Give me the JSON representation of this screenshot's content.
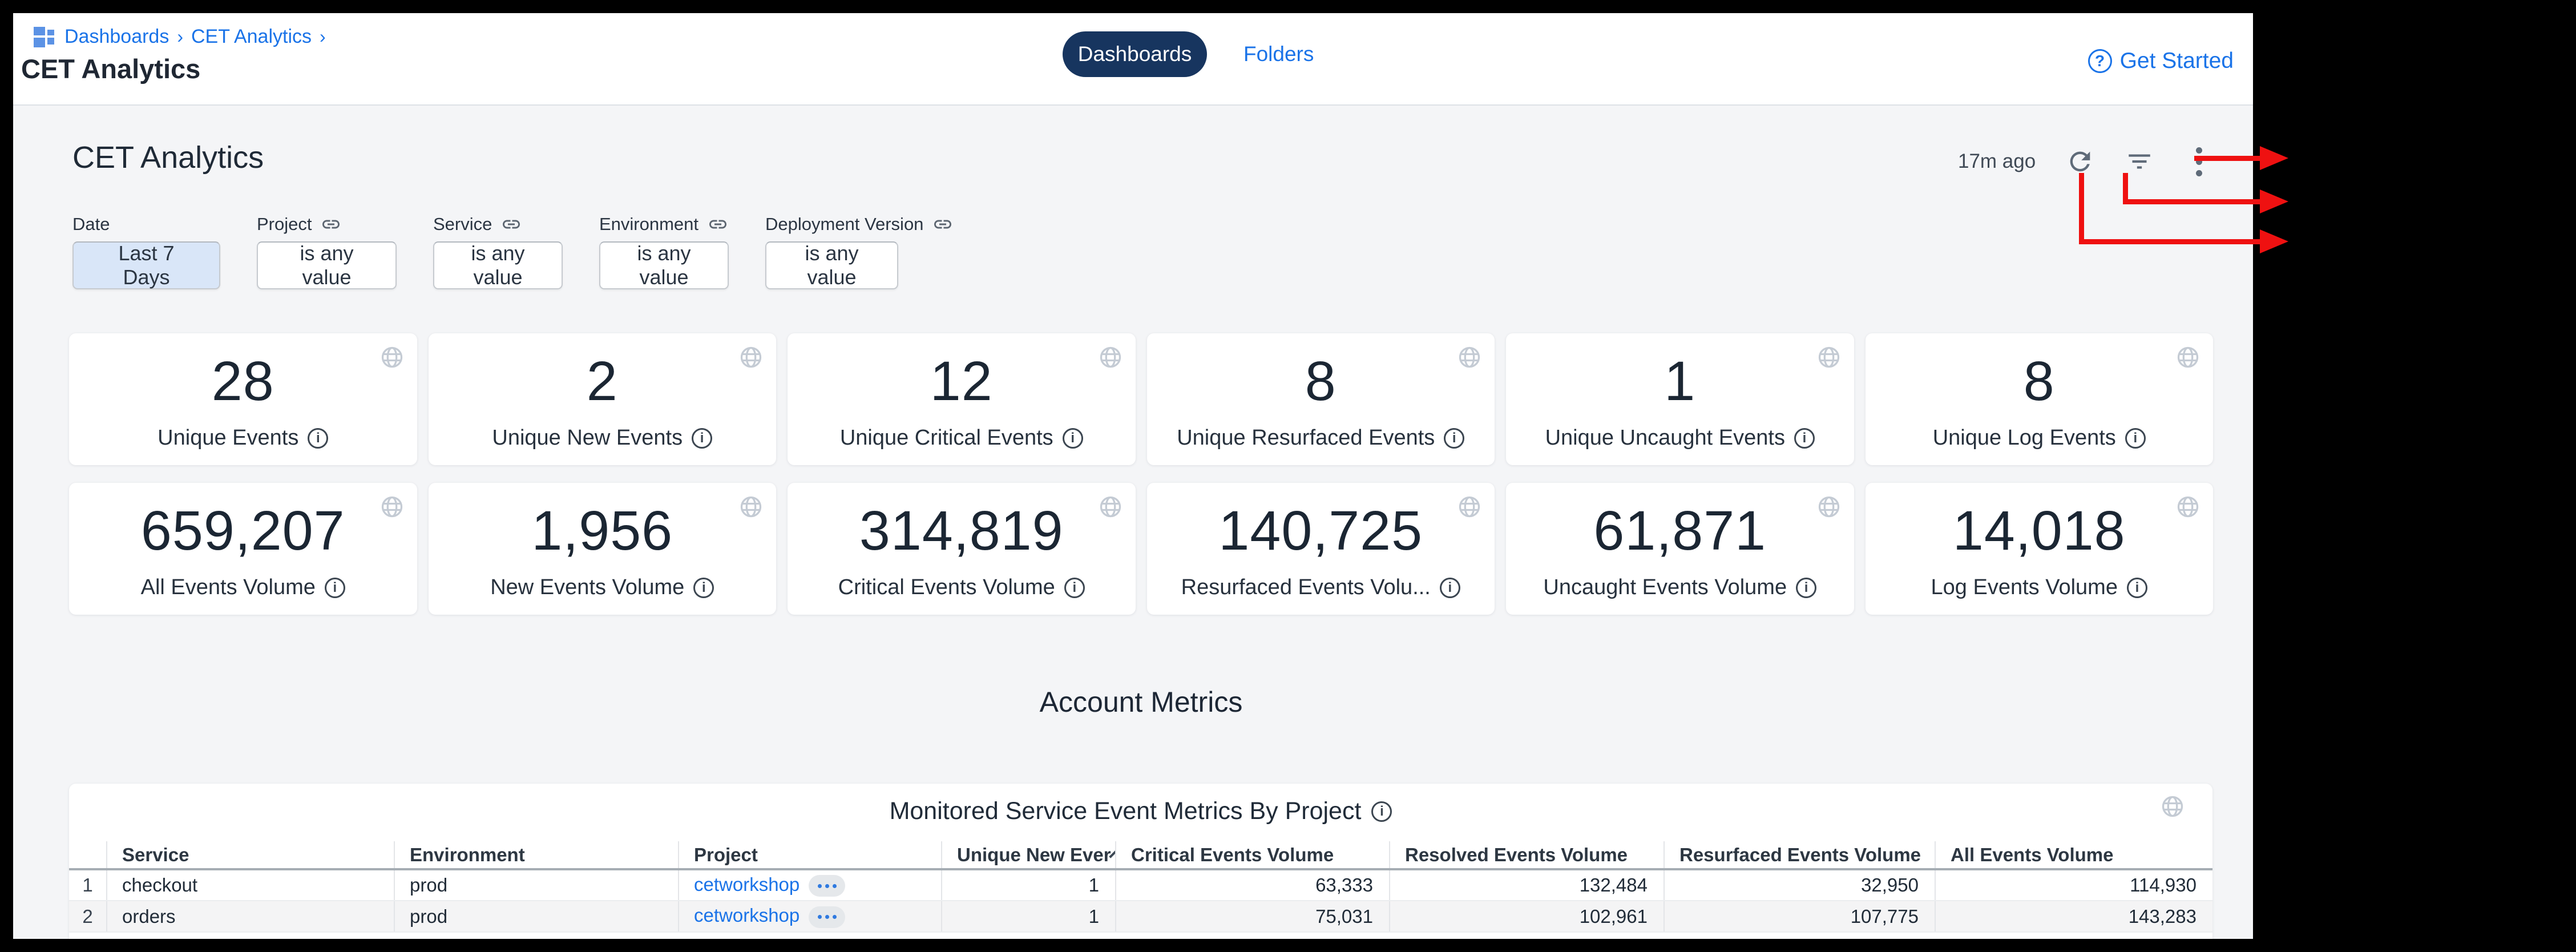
{
  "header": {
    "breadcrumb": {
      "root": "Dashboards",
      "current": "CET Analytics",
      "sep": "›"
    },
    "page_title": "CET Analytics",
    "tabs": {
      "dashboards": "Dashboards",
      "folders": "Folders"
    },
    "get_started": "Get Started"
  },
  "dashboard": {
    "title": "CET Analytics",
    "last_refreshed": "17m ago",
    "filters": [
      {
        "label": "Date",
        "value": "Last 7 Days",
        "linked": false,
        "active": true
      },
      {
        "label": "Project",
        "value": "is any value",
        "linked": true,
        "active": false
      },
      {
        "label": "Service",
        "value": "is any value",
        "linked": true,
        "active": false
      },
      {
        "label": "Environment",
        "value": "is any value",
        "linked": true,
        "active": false
      },
      {
        "label": "Deployment Version",
        "value": "is any value",
        "linked": true,
        "active": false
      }
    ],
    "tiles": [
      {
        "value": "28",
        "label": "Unique Events"
      },
      {
        "value": "2",
        "label": "Unique New Events"
      },
      {
        "value": "12",
        "label": "Unique Critical Events"
      },
      {
        "value": "8",
        "label": "Unique Resurfaced Events"
      },
      {
        "value": "1",
        "label": "Unique Uncaught Events"
      },
      {
        "value": "8",
        "label": "Unique Log Events"
      },
      {
        "value": "659,207",
        "label": "All Events Volume"
      },
      {
        "value": "1,956",
        "label": "New Events Volume"
      },
      {
        "value": "314,819",
        "label": "Critical Events Volume"
      },
      {
        "value": "140,725",
        "label": "Resurfaced Events Volu..."
      },
      {
        "value": "61,871",
        "label": "Uncaught Events Volume"
      },
      {
        "value": "14,018",
        "label": "Log Events Volume"
      }
    ],
    "section_title": "Account Metrics",
    "table": {
      "title": "Monitored Service Event Metrics By Project",
      "columns": [
        {
          "label": "",
          "numeric": false,
          "sorted": false
        },
        {
          "label": "Service",
          "numeric": false,
          "sorted": false
        },
        {
          "label": "Environment",
          "numeric": false,
          "sorted": false
        },
        {
          "label": "Project",
          "numeric": false,
          "sorted": false
        },
        {
          "label": "Unique New Ever",
          "numeric": true,
          "sorted": true
        },
        {
          "label": "Critical Events Volume",
          "numeric": true,
          "sorted": false
        },
        {
          "label": "Resolved Events Volume",
          "numeric": true,
          "sorted": false
        },
        {
          "label": "Resurfaced Events Volume",
          "numeric": true,
          "sorted": false
        },
        {
          "label": "All Events Volume",
          "numeric": true,
          "sorted": false
        }
      ],
      "rows": [
        {
          "index": "1",
          "service": "checkout",
          "environment": "prod",
          "project": "cetworkshop",
          "unique_new": "1",
          "critical": "63,333",
          "resolved": "132,484",
          "resurfaced": "32,950",
          "all": "114,930"
        },
        {
          "index": "2",
          "service": "orders",
          "environment": "prod",
          "project": "cetworkshop",
          "unique_new": "1",
          "critical": "75,031",
          "resolved": "102,961",
          "resurfaced": "107,775",
          "all": "143,283"
        }
      ]
    }
  },
  "icons": {
    "breadcrumb": "dashboards-grid-icon",
    "help": "question-circle-icon",
    "refresh": "refresh-icon",
    "filter": "filter-list-icon",
    "menu": "kebab-menu-icon",
    "tile_corner": "globe-icon",
    "label_suffix": "info-icon",
    "filter_label_suffix": "link-icon",
    "sort": "chevron-down-icon"
  },
  "colors": {
    "link_blue": "#1a73e8",
    "active_tab_navy": "#17355f",
    "selected_filter_blue": "#d9e6f8",
    "page_background": "#f4f5f7",
    "annotation_red": "#ef1111",
    "value_text": "#1b2633"
  }
}
